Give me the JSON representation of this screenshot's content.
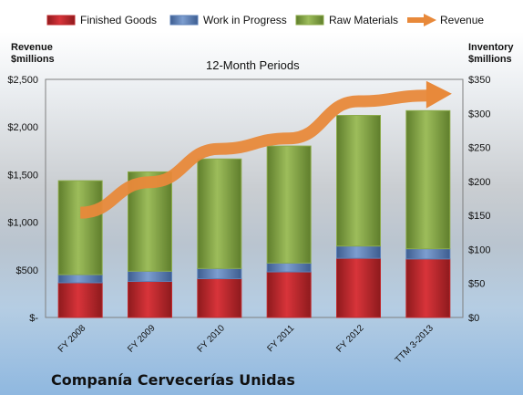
{
  "company_name": "Companía Cervecerías Unidas",
  "chart_data": {
    "type": "bar",
    "subtitle": "12-Month Periods",
    "y_left_label_lines": [
      "Revenue",
      "$millions"
    ],
    "y_right_label_lines": [
      "Inventory",
      "$millions"
    ],
    "categories": [
      "FY 2008",
      "FY 2009",
      "FY 2010",
      "FY 2011",
      "FY 2012",
      "TTM 3-2013"
    ],
    "stacked_series": [
      {
        "name": "Finished Goods",
        "axis": "right",
        "color": "#c0282c",
        "values": [
          51,
          53,
          57,
          67,
          87,
          86
        ]
      },
      {
        "name": "Work in Progress",
        "axis": "right",
        "color": "#5c80b8",
        "values": [
          12,
          15,
          15,
          13,
          18,
          15
        ]
      },
      {
        "name": "Raw Materials",
        "axis": "right",
        "color": "#8cab4a",
        "values": [
          138,
          146,
          161,
          172,
          192,
          203
        ]
      }
    ],
    "line_series": {
      "name": "Revenue",
      "axis": "left",
      "color": "#e8893a",
      "values": [
        1100,
        1420,
        1770,
        1880,
        2270,
        2330
      ]
    },
    "y_left": {
      "min": 0,
      "max": 2500,
      "ticks": [
        "$-",
        "$500",
        "$1,000",
        "$1,500",
        "$2,000",
        "$2,500"
      ]
    },
    "y_right": {
      "min": 0,
      "max": 350,
      "ticks": [
        "$0",
        "$50",
        "$100",
        "$150",
        "$200",
        "$250",
        "$300",
        "$350"
      ]
    },
    "legend_position": "top",
    "grid": false
  }
}
